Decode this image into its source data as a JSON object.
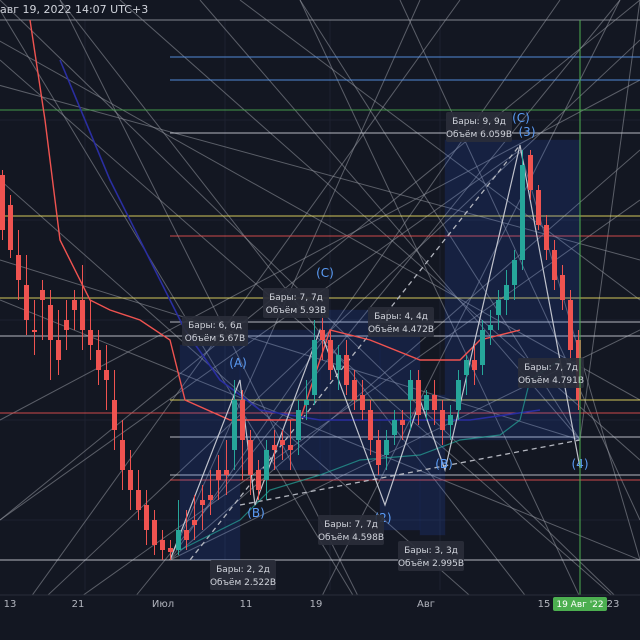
{
  "header": {
    "datetime": "авг 19, 2022 14:07 UTC+3"
  },
  "chart_data": {
    "type": "candlestick",
    "title": "",
    "x_axis": {
      "ticks": [
        "13",
        "21",
        "Июл",
        "11",
        "19",
        "Авг",
        "15",
        "23"
      ],
      "highlighted_label": "19 Авг '22"
    },
    "grid": true,
    "wave_labels": [
      "(A)",
      "(B)",
      "(C)",
      "(2)",
      "(B)",
      "(C)",
      "(3)",
      "(4)"
    ],
    "annotations": [
      {
        "bars": "Бары: 6, 6д",
        "volume": "Объём 5.67B"
      },
      {
        "bars": "Бары: 7, 7д",
        "volume": "Объём 5.93B"
      },
      {
        "bars": "Бары: 4, 4д",
        "volume": "Объём 4.472B"
      },
      {
        "bars": "Бары: 9, 9д",
        "volume": "Объём 6.059B"
      },
      {
        "bars": "Бары: 7, 7д",
        "volume": "Объём 4.791B"
      },
      {
        "bars": "Бары: 7, 7д",
        "volume": "Объём 4.598B"
      },
      {
        "bars": "Бары: 2, 2д",
        "volume": "Объём 2.522B"
      },
      {
        "bars": "Бары: 3, 3д",
        "volume": "Объём 2.995B"
      }
    ],
    "colors": {
      "up": "#26a69a",
      "down": "#ef5350",
      "background": "#131722",
      "text": "#d1d4dc",
      "wave": "#5b9cf6",
      "highlight": "#4caf50"
    }
  }
}
